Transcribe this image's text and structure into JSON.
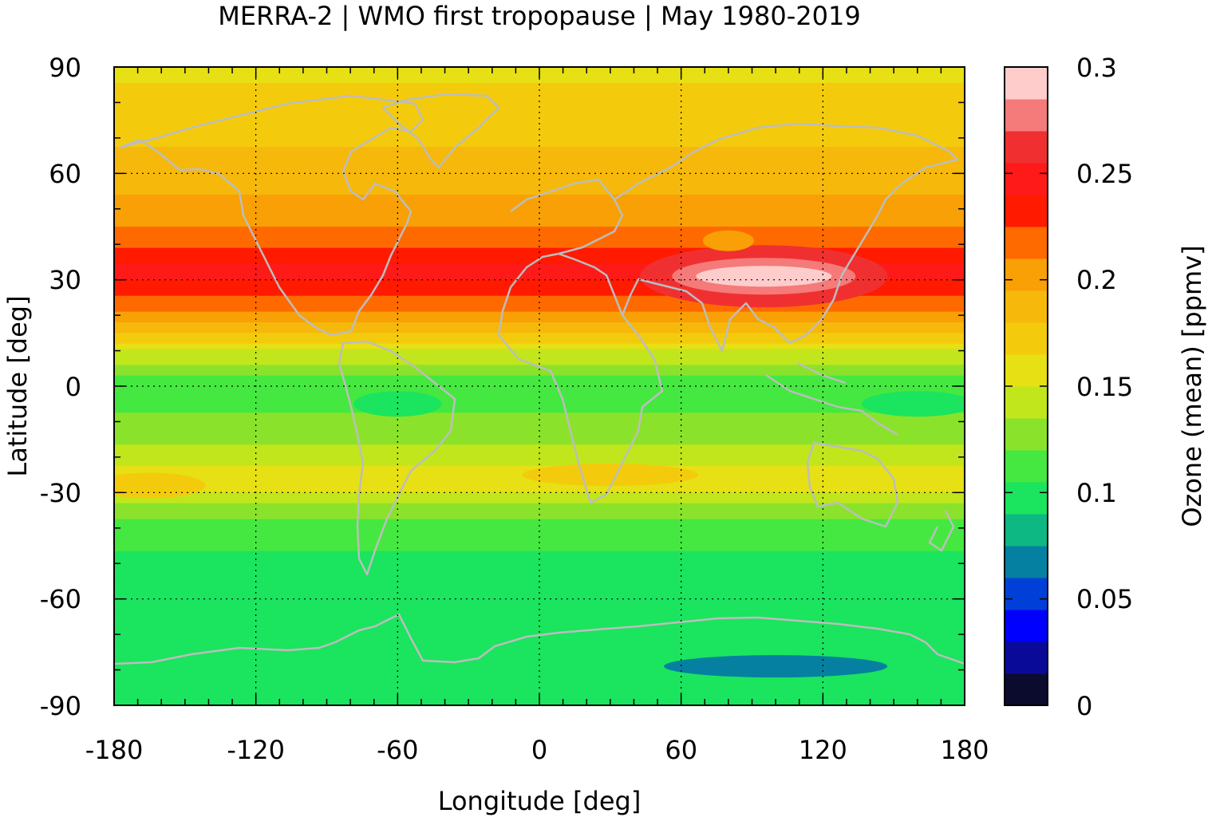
{
  "chart_data": {
    "type": "heatmap",
    "title": "MERRA-2 | WMO first tropopause | May 1980-2019",
    "xlabel": "Longitude [deg]",
    "ylabel": "Latitude [deg]",
    "colorbar_label": "Ozone (mean) [ppmv]",
    "xlim": [
      -180,
      180
    ],
    "ylim": [
      -90,
      90
    ],
    "xticks": [
      "-180",
      "-120",
      "-60",
      "0",
      "60",
      "120",
      "180"
    ],
    "yticks": [
      "90",
      "60",
      "30",
      "0",
      "-30",
      "-60",
      "-90"
    ],
    "grid": true,
    "colorbar": {
      "range": [
        0,
        0.3
      ],
      "tick_labels": [
        "0.3",
        "0.25",
        "0.2",
        "0.15",
        "0.1",
        "0.05",
        "0"
      ],
      "levels": [
        0,
        0.015,
        0.03,
        0.045,
        0.06,
        0.075,
        0.09,
        0.105,
        0.12,
        0.135,
        0.15,
        0.165,
        0.18,
        0.195,
        0.21,
        0.225,
        0.24,
        0.255,
        0.27,
        0.285,
        0.3
      ],
      "colors": [
        "#0b0b2e",
        "#0a0a99",
        "#0000ff",
        "#0040d8",
        "#0580a0",
        "#0db883",
        "#1be45e",
        "#45e840",
        "#8ae32a",
        "#c2e61c",
        "#e6e014",
        "#f4cb0c",
        "#f6b80a",
        "#f8a005",
        "#ff6a00",
        "#ff1a00",
        "#ff1a1a",
        "#f03030",
        "#f57a7a",
        "#ffcccc"
      ]
    },
    "field_description_points": [
      {
        "lat": 90,
        "ozone": 0.16
      },
      {
        "lat": 75,
        "ozone": 0.175
      },
      {
        "lat": 60,
        "ozone": 0.185
      },
      {
        "lat": 45,
        "ozone": 0.21
      },
      {
        "lat": 32,
        "ozone": 0.245
      },
      {
        "lat": 20,
        "ozone": 0.205
      },
      {
        "lat": 10,
        "ozone": 0.15
      },
      {
        "lat": 0,
        "ozone": 0.11
      },
      {
        "lat": -15,
        "ozone": 0.13
      },
      {
        "lat": -27,
        "ozone": 0.16
      },
      {
        "lat": -40,
        "ozone": 0.11
      },
      {
        "lat": -60,
        "ozone": 0.095
      },
      {
        "lat": -75,
        "ozone": 0.09
      },
      {
        "lat": -90,
        "ozone": 0.09
      }
    ],
    "features": [
      {
        "lon": 95,
        "lat": 31,
        "ozone": 0.29
      },
      {
        "lon": 80,
        "lat": 41,
        "ozone": 0.2
      },
      {
        "lon": 100,
        "lat": -79,
        "ozone": 0.07
      },
      {
        "lon": -60,
        "lat": -5,
        "ozone": 0.1
      },
      {
        "lon": 30,
        "lat": -25,
        "ozone": 0.175
      },
      {
        "lon": -165,
        "lat": -28,
        "ozone": 0.175
      },
      {
        "lon": 160,
        "lat": -5,
        "ozone": 0.09
      }
    ]
  }
}
